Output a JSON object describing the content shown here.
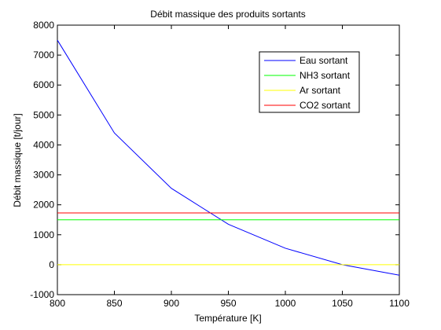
{
  "chart_data": {
    "type": "line",
    "title": "Débit massique des produits sortants",
    "xlabel": "Température [K]",
    "ylabel": "Débit massique [t/jour]",
    "xlim": [
      800,
      1100
    ],
    "ylim": [
      -1000,
      8000
    ],
    "xticks": [
      "800",
      "850",
      "900",
      "950",
      "1000",
      "1050",
      "1100"
    ],
    "yticks": [
      "-1000",
      "0",
      "1000",
      "2000",
      "3000",
      "4000",
      "5000",
      "6000",
      "7000",
      "8000"
    ],
    "grid": false,
    "legend_position": "top-right",
    "series": [
      {
        "name": "Eau sortant",
        "color": "#0000ff",
        "x": [
          800,
          850,
          900,
          950,
          1000,
          1050,
          1100
        ],
        "y": [
          7500,
          4400,
          2550,
          1350,
          550,
          0,
          -350
        ]
      },
      {
        "name": "NH3 sortant",
        "color": "#00ff00",
        "x": [
          800,
          1100
        ],
        "y": [
          1500,
          1500
        ]
      },
      {
        "name": "Ar sortant",
        "color": "#ffff00",
        "x": [
          800,
          1100
        ],
        "y": [
          0,
          0
        ]
      },
      {
        "name": "CO2 sortant",
        "color": "#ff0000",
        "x": [
          800,
          1100
        ],
        "y": [
          1730,
          1730
        ]
      }
    ]
  }
}
